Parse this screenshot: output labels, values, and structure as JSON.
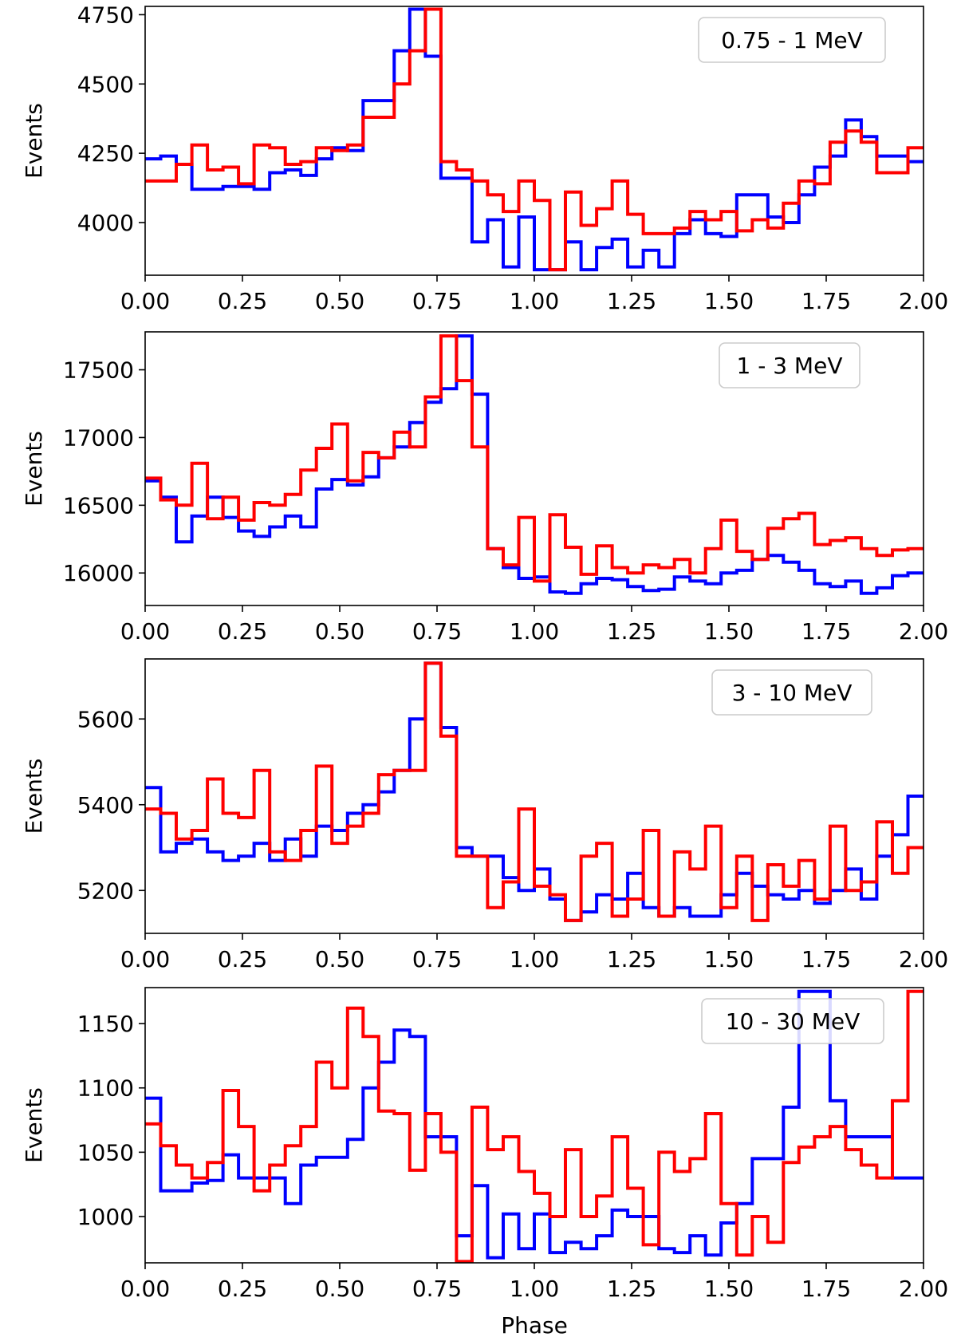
{
  "chart_data": [
    {
      "type": "line",
      "drawstyle": "steps",
      "title": "",
      "panel_label": "0.75 - 1 MeV",
      "xlabel": "",
      "ylabel": "Events",
      "xlim": [
        0,
        2
      ],
      "ylim": [
        3810,
        4780
      ],
      "yticks": [
        4000,
        4250,
        4500,
        4750
      ],
      "xticks": [
        "0.00",
        "0.25",
        "0.50",
        "0.75",
        "1.00",
        "1.25",
        "1.50",
        "1.75",
        "2.00"
      ],
      "series": [
        {
          "name": "blue",
          "color": "#0000ff",
          "values": [
            4230,
            4240,
            4210,
            4120,
            4120,
            4130,
            4130,
            4120,
            4180,
            4190,
            4170,
            4230,
            4270,
            4260,
            4440,
            4440,
            4620,
            4770,
            4600,
            4160,
            4160,
            3930,
            4010,
            3840,
            4020,
            3830,
            3830,
            3930,
            3830,
            3910,
            3940,
            3840,
            3900,
            3840,
            3960,
            4010,
            3960,
            3950,
            4100,
            4100,
            4020,
            4000,
            4100,
            4200,
            4240,
            4370,
            4310,
            4240,
            4240,
            4220
          ]
        },
        {
          "name": "red",
          "color": "#ff0000",
          "values": [
            4150,
            4150,
            4210,
            4280,
            4190,
            4200,
            4140,
            4280,
            4270,
            4210,
            4220,
            4270,
            4260,
            4280,
            4380,
            4380,
            4500,
            4620,
            4770,
            4220,
            4190,
            4150,
            4100,
            4040,
            4150,
            4080,
            3830,
            4110,
            3990,
            4050,
            4150,
            4030,
            3960,
            3960,
            3980,
            4040,
            4010,
            4040,
            3970,
            4010,
            3980,
            4070,
            4150,
            4140,
            4290,
            4330,
            4290,
            4180,
            4180,
            4270
          ]
        }
      ]
    },
    {
      "type": "line",
      "drawstyle": "steps",
      "title": "",
      "panel_label": "1 - 3 MeV",
      "xlabel": "",
      "ylabel": "Events",
      "xlim": [
        0,
        2
      ],
      "ylim": [
        15760,
        17780
      ],
      "yticks": [
        16000,
        16500,
        17000,
        17500
      ],
      "xticks": [
        "0.00",
        "0.25",
        "0.50",
        "0.75",
        "1.00",
        "1.25",
        "1.50",
        "1.75",
        "2.00"
      ],
      "series": [
        {
          "name": "blue",
          "color": "#0000ff",
          "values": [
            16680,
            16560,
            16230,
            16420,
            16560,
            16410,
            16310,
            16270,
            16340,
            16420,
            16340,
            16620,
            16690,
            16650,
            16710,
            16850,
            16930,
            17110,
            17260,
            17360,
            17750,
            17320,
            16180,
            16040,
            15960,
            15970,
            15860,
            15850,
            15920,
            15960,
            15950,
            15900,
            15870,
            15880,
            15970,
            15940,
            15920,
            16000,
            16020,
            16100,
            16130,
            16080,
            16020,
            15920,
            15900,
            15940,
            15850,
            15890,
            15980,
            16000
          ]
        },
        {
          "name": "red",
          "color": "#ff0000",
          "values": [
            16700,
            16540,
            16500,
            16810,
            16400,
            16560,
            16390,
            16520,
            16500,
            16580,
            16760,
            16920,
            17100,
            16680,
            16890,
            16850,
            17040,
            16930,
            17300,
            17750,
            17420,
            16930,
            16180,
            16060,
            16410,
            15940,
            16430,
            16190,
            15990,
            16200,
            16040,
            16000,
            16060,
            16040,
            16100,
            16000,
            16180,
            16390,
            16160,
            16100,
            16330,
            16400,
            16440,
            16210,
            16240,
            16260,
            16180,
            16130,
            16170,
            16180
          ]
        }
      ]
    },
    {
      "type": "line",
      "drawstyle": "steps",
      "title": "",
      "panel_label": "3 - 10 MeV",
      "xlabel": "",
      "ylabel": "Events",
      "xlim": [
        0,
        2
      ],
      "ylim": [
        5100,
        5740
      ],
      "yticks": [
        5200,
        5400,
        5600
      ],
      "xticks": [
        "0.00",
        "0.25",
        "0.50",
        "0.75",
        "1.00",
        "1.25",
        "1.50",
        "1.75",
        "2.00"
      ],
      "series": [
        {
          "name": "blue",
          "color": "#0000ff",
          "values": [
            5440,
            5290,
            5310,
            5320,
            5290,
            5270,
            5280,
            5310,
            5270,
            5320,
            5280,
            5350,
            5340,
            5380,
            5400,
            5430,
            5480,
            5600,
            5730,
            5580,
            5300,
            5280,
            5280,
            5230,
            5200,
            5250,
            5180,
            5130,
            5150,
            5190,
            5180,
            5240,
            5160,
            5140,
            5160,
            5140,
            5140,
            5190,
            5240,
            5210,
            5190,
            5180,
            5200,
            5170,
            5200,
            5250,
            5180,
            5280,
            5330,
            5420
          ]
        },
        {
          "name": "red",
          "color": "#ff0000",
          "values": [
            5390,
            5380,
            5320,
            5340,
            5460,
            5380,
            5370,
            5480,
            5290,
            5270,
            5340,
            5490,
            5310,
            5350,
            5380,
            5470,
            5480,
            5480,
            5730,
            5560,
            5280,
            5280,
            5160,
            5220,
            5390,
            5210,
            5190,
            5130,
            5280,
            5310,
            5140,
            5180,
            5340,
            5140,
            5290,
            5250,
            5350,
            5160,
            5280,
            5130,
            5260,
            5210,
            5270,
            5180,
            5350,
            5200,
            5220,
            5360,
            5240,
            5300
          ]
        }
      ]
    },
    {
      "type": "line",
      "drawstyle": "steps",
      "title": "",
      "panel_label": "10 - 30 MeV",
      "xlabel": "Phase",
      "ylabel": "Events",
      "xlim": [
        0,
        2
      ],
      "ylim": [
        964,
        1178
      ],
      "yticks": [
        1000,
        1050,
        1100,
        1150
      ],
      "xticks": [
        "0.00",
        "0.25",
        "0.50",
        "0.75",
        "1.00",
        "1.25",
        "1.50",
        "1.75",
        "2.00"
      ],
      "series": [
        {
          "name": "blue",
          "color": "#0000ff",
          "values": [
            1092,
            1020,
            1020,
            1026,
            1028,
            1048,
            1030,
            1030,
            1030,
            1010,
            1040,
            1046,
            1046,
            1060,
            1100,
            1120,
            1145,
            1140,
            1062,
            1062,
            985,
            1024,
            968,
            1002,
            975,
            1002,
            972,
            980,
            975,
            985,
            1005,
            1000,
            1000,
            975,
            972,
            985,
            970,
            995,
            1010,
            1045,
            1045,
            1085,
            1175,
            1175,
            1090,
            1062,
            1062,
            1062,
            1030,
            1030
          ]
        },
        {
          "name": "red",
          "color": "#ff0000",
          "values": [
            1072,
            1055,
            1040,
            1030,
            1042,
            1098,
            1070,
            1020,
            1040,
            1055,
            1070,
            1120,
            1100,
            1162,
            1140,
            1082,
            1080,
            1036,
            1080,
            1050,
            965,
            1085,
            1052,
            1062,
            1035,
            1018,
            1000,
            1052,
            1000,
            1016,
            1062,
            1022,
            978,
            1050,
            1035,
            1045,
            1080,
            1010,
            970,
            1000,
            980,
            1042,
            1054,
            1062,
            1070,
            1052,
            1040,
            1030,
            1090,
            1175
          ]
        }
      ]
    }
  ]
}
